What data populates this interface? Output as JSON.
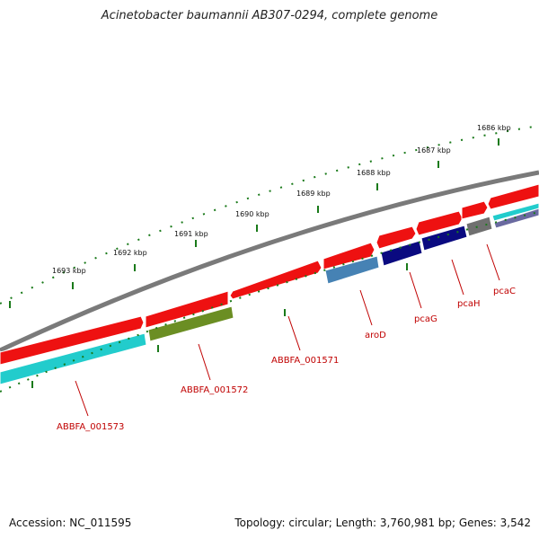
{
  "title": "Acinetobacter baumannii AB307-0294, complete genome",
  "footer": {
    "accession": "Accession: NC_011595",
    "summary": "Topology: circular; Length: 3,760,981 bp; Genes: 3,542"
  },
  "scale_labels": [
    "1693 kbp",
    "1692 kbp",
    "1691 kbp",
    "1690 kbp",
    "1689 kbp",
    "1688 kbp",
    "1687 kbp",
    "1686 kbp"
  ],
  "gene_labels": [
    "ABBFA_001573",
    "ABBFA_001572",
    "ABBFA_001571",
    "aroD",
    "pcaG",
    "pcaH",
    "pcaC"
  ],
  "colors": {
    "backbone": "#7a7a7a",
    "forward_feature": "#ee1111",
    "gene_cyan": "#22cccc",
    "gene_olive": "#6b8e23",
    "gene_steelblue": "#4682b4",
    "gene_navy": "#0a0a80",
    "gene_gray": "#707070",
    "gene_slate": "#6a6aa0",
    "tick": "#1a7a1a",
    "label": "#c00000"
  }
}
